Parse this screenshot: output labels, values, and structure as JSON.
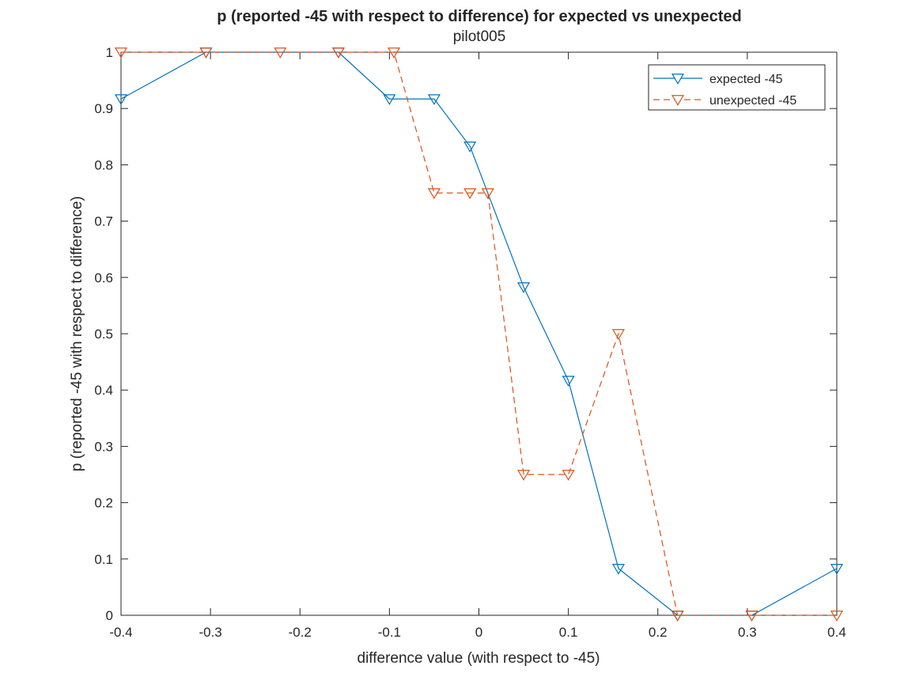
{
  "chart_data": {
    "type": "line",
    "title": "p (reported -45 with respect to difference) for expected vs unexpected",
    "subtitle": "pilot005",
    "xlabel": "difference value (with respect to -45)",
    "ylabel": "p (reported -45 with respect to difference)",
    "xlim": [
      -0.4,
      0.4
    ],
    "ylim": [
      0,
      1
    ],
    "xticks": [
      -0.4,
      -0.3,
      -0.2,
      -0.1,
      0,
      0.1,
      0.2,
      0.3,
      0.4
    ],
    "xtick_labels": [
      "-0.4",
      "-0.3",
      "-0.2",
      "-0.1",
      "0",
      "0.1",
      "0.2",
      "0.3",
      "0.4"
    ],
    "yticks": [
      0,
      0.1,
      0.2,
      0.3,
      0.4,
      0.5,
      0.6,
      0.7,
      0.8,
      0.9,
      1
    ],
    "ytick_labels": [
      "0",
      "0.1",
      "0.2",
      "0.3",
      "0.4",
      "0.5",
      "0.6",
      "0.7",
      "0.8",
      "0.9",
      "1"
    ],
    "grid": false,
    "legend_position": "top-right",
    "series": [
      {
        "name": "expected -45",
        "color": "#0072BD",
        "line_style": "solid",
        "marker": "triangle-down",
        "x": [
          -0.4,
          -0.305,
          -0.157,
          -0.1,
          -0.05,
          -0.01,
          0.05,
          0.1,
          0.156,
          0.222,
          0.305,
          0.4
        ],
        "y": [
          0.917,
          1.0,
          1.0,
          0.917,
          0.917,
          0.833,
          0.583,
          0.417,
          0.083,
          0.0,
          0.0,
          0.083
        ]
      },
      {
        "name": "unexpected -45",
        "color": "#D95319",
        "line_style": "dashed",
        "marker": "triangle-down",
        "x": [
          -0.4,
          -0.305,
          -0.222,
          -0.157,
          -0.095,
          -0.05,
          -0.01,
          0.01,
          0.05,
          0.1,
          0.156,
          0.222,
          0.305,
          0.4
        ],
        "y": [
          1.0,
          1.0,
          1.0,
          1.0,
          1.0,
          0.75,
          0.75,
          0.75,
          0.25,
          0.25,
          0.5,
          0.0,
          0.0,
          0.0
        ]
      }
    ]
  }
}
